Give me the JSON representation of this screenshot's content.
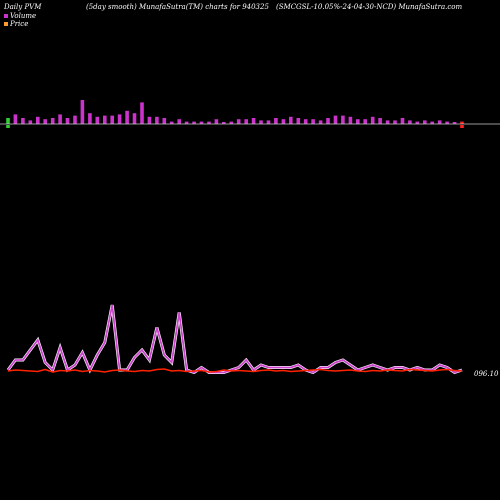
{
  "header": {
    "left": "Daily PVM",
    "center_left": "(5day smooth) MunafaSutra(TM) charts for 940325",
    "center_right": "(SMCGSL-10.05%-24-04-30-NCD) MunafaSutra.com"
  },
  "legend": {
    "volume_label": "Volume",
    "price_label": "Price",
    "volume_color": "#cc33cc",
    "price_color": "#ff9933"
  },
  "colors": {
    "background": "#000000",
    "volume_up": "#cc33cc",
    "volume_down": "#ff2222",
    "volume_first": "#33cc33",
    "baseline": "#cccccc",
    "volume_line": "#cc44cc",
    "volume_line_glow": "#ffffff",
    "price_line": "#ff2200"
  },
  "chart_data": {
    "type": "bar",
    "series": [
      {
        "name": "Volume",
        "values": [
          5,
          8,
          5,
          3,
          6,
          4,
          5,
          8,
          5,
          7,
          20,
          9,
          6,
          7,
          7,
          8,
          11,
          9,
          18,
          6,
          6,
          5,
          2,
          4,
          2,
          2,
          2,
          2,
          4,
          1,
          2,
          4,
          4,
          5,
          3,
          3,
          5,
          4,
          6,
          5,
          4,
          4,
          3,
          5,
          7,
          7,
          6,
          4,
          4,
          6,
          5,
          3,
          3,
          5,
          3,
          2,
          3,
          2,
          3,
          2,
          1,
          2
        ]
      },
      {
        "name": "Price",
        "values": [
          96.2,
          96.4,
          96.3,
          96.2,
          96.1,
          96.5,
          96.0,
          96.3,
          96.2,
          96.4,
          96.1,
          96.3,
          96.2,
          96.0,
          96.3,
          96.4,
          96.2,
          96.1,
          96.3,
          96.2,
          96.5,
          96.6,
          96.2,
          96.3,
          96.1,
          96.2,
          96.3,
          96.0,
          96.1,
          96.4,
          96.2,
          96.3,
          96.2,
          96.1,
          96.3,
          96.4,
          96.2,
          96.3,
          96.1,
          96.2,
          96.3,
          96.4,
          96.5,
          96.3,
          96.2,
          96.3,
          96.4,
          96.2,
          96.1,
          96.3,
          96.2,
          96.4,
          96.3,
          96.2,
          96.5,
          96.4,
          96.3,
          96.2,
          96.4,
          96.5,
          96.3,
          96.2
        ]
      }
    ],
    "volume_line": [
      2,
      6,
      6,
      10,
      14,
      5,
      2,
      11,
      2,
      4,
      9,
      2,
      8,
      13,
      28,
      2,
      2,
      7,
      10,
      6,
      19,
      8,
      5,
      25,
      2,
      1,
      3,
      1,
      1,
      1,
      2,
      3,
      6,
      2,
      4,
      3,
      3,
      3,
      3,
      4,
      2,
      1,
      3,
      3,
      5,
      6,
      4,
      2,
      3,
      4,
      3,
      2,
      3,
      3,
      2,
      3,
      2,
      2,
      4,
      3,
      1,
      2
    ],
    "last_price_label": "096.10",
    "grid": false,
    "legend_position": "top-left"
  }
}
